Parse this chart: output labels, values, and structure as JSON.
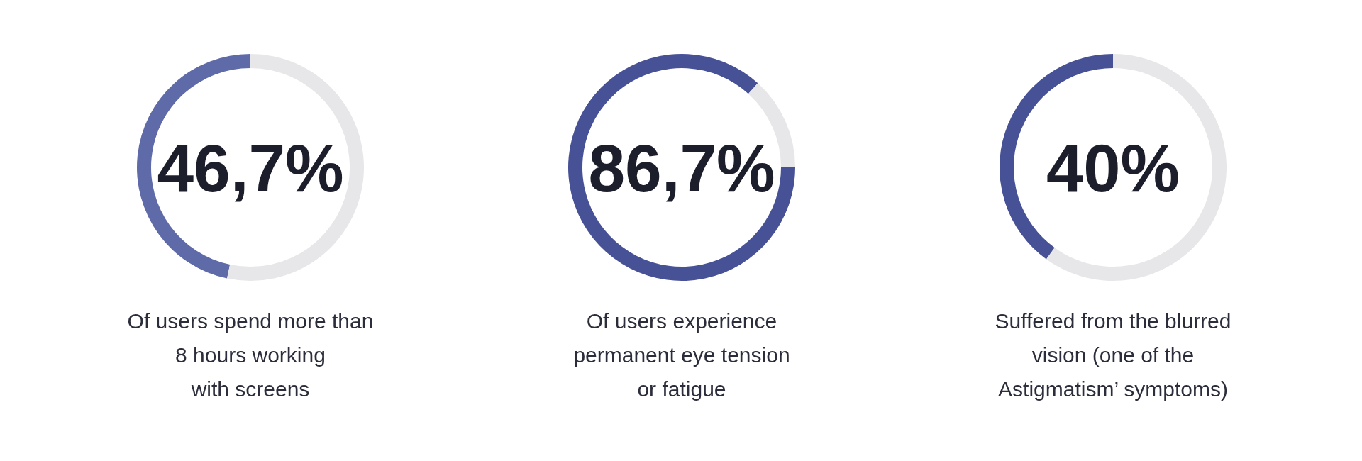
{
  "chart_data": [
    {
      "type": "donut",
      "title": "Of users spend more than\n8 hours working\nwith screens",
      "categories": [
        null,
        null
      ],
      "values": [
        46.7,
        53.3
      ],
      "colors": [
        "#5f6aa8",
        "#e7e7e9"
      ],
      "annotations": [
        "46,7%"
      ]
    },
    {
      "type": "donut",
      "title": "Of users experience\npermanent eye tension\nor fatigue",
      "categories": [
        null,
        null
      ],
      "values": [
        86.7,
        13.3
      ],
      "colors": [
        "#475196",
        "#e7e7e9"
      ],
      "annotations": [
        "86,7%"
      ]
    },
    {
      "type": "donut",
      "title": "Suffered from the blurred\nvision (one of the\nAstigmatism’ symptoms)",
      "categories": [
        null,
        null
      ],
      "values": [
        40,
        60
      ],
      "colors": [
        "#475196",
        "#e7e7e9"
      ],
      "annotations": [
        "40%"
      ]
    }
  ]
}
